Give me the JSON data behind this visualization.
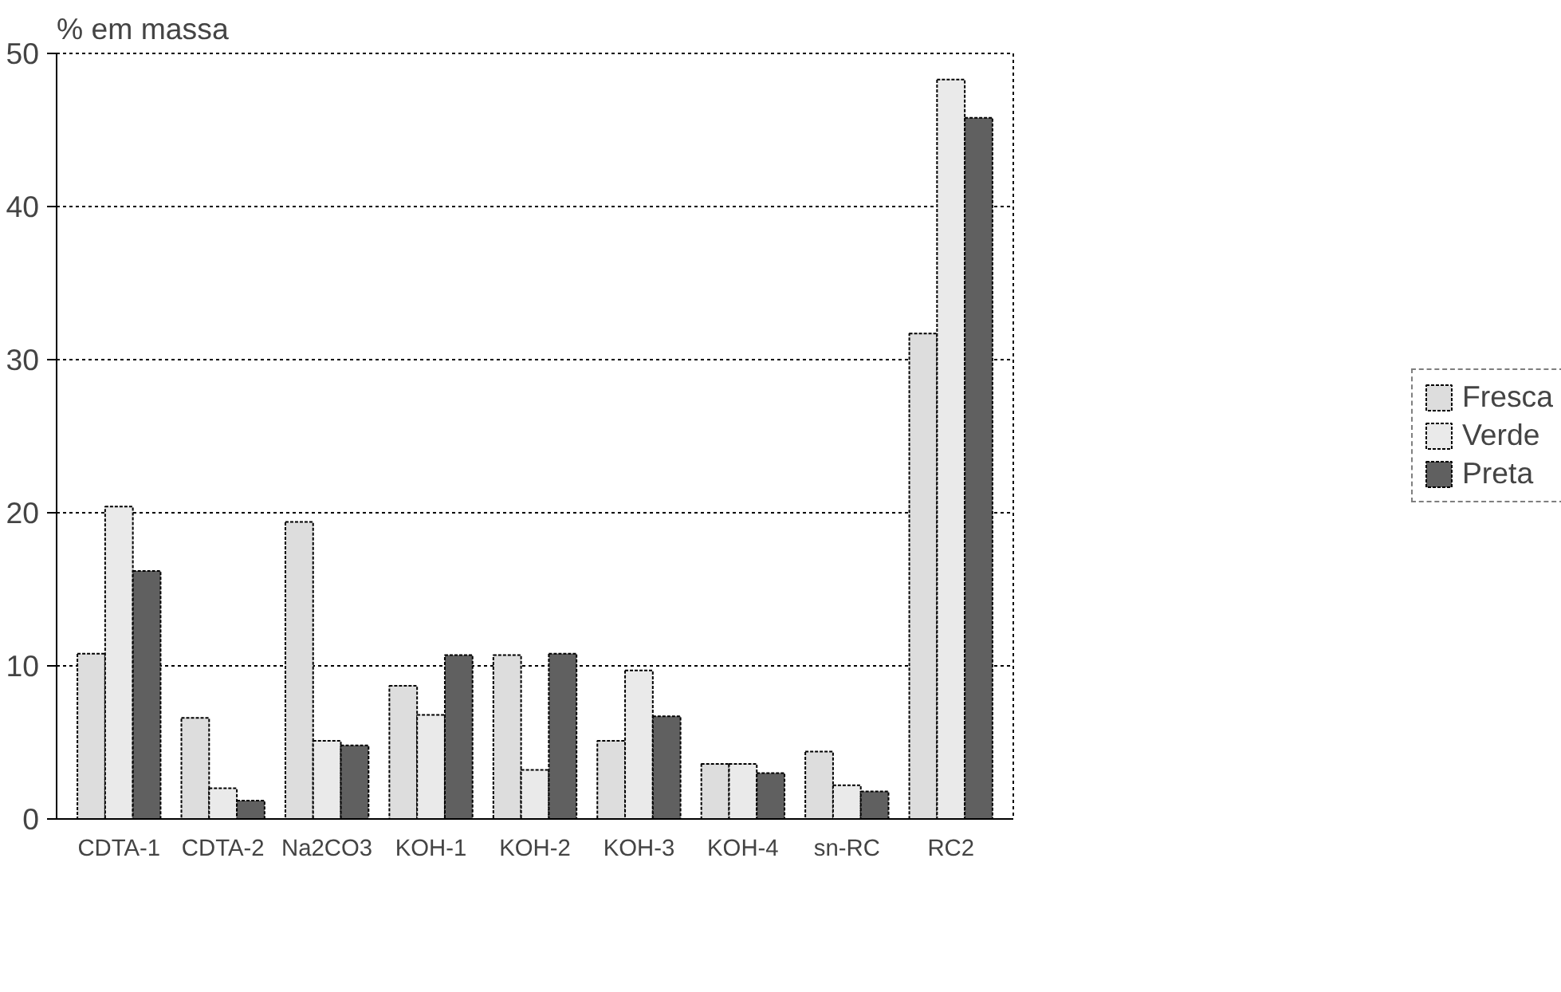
{
  "chart_data": {
    "type": "bar",
    "ylabel": "% em massa",
    "categories": [
      "CDTA-1",
      "CDTA-2",
      "Na2CO3",
      "KOH-1",
      "KOH-2",
      "KOH-3",
      "KOH-4",
      "sn-RC",
      "RC2"
    ],
    "series": [
      {
        "name": "Fresca",
        "color": "#dddddd",
        "values": [
          10.8,
          6.6,
          19.4,
          8.7,
          10.7,
          5.1,
          3.6,
          4.4,
          31.7
        ]
      },
      {
        "name": "Verde",
        "color": "#eaeaea",
        "values": [
          20.4,
          2.0,
          5.1,
          6.8,
          3.2,
          9.7,
          3.6,
          2.2,
          48.3
        ]
      },
      {
        "name": "Preta",
        "color": "#606060",
        "values": [
          16.2,
          1.2,
          4.8,
          10.7,
          10.8,
          6.7,
          3.0,
          1.8,
          45.8
        ]
      }
    ],
    "ylim": [
      0,
      50
    ],
    "yticks": [
      0,
      10,
      20,
      30,
      40,
      50
    ],
    "grid": "y",
    "legend": "right"
  }
}
